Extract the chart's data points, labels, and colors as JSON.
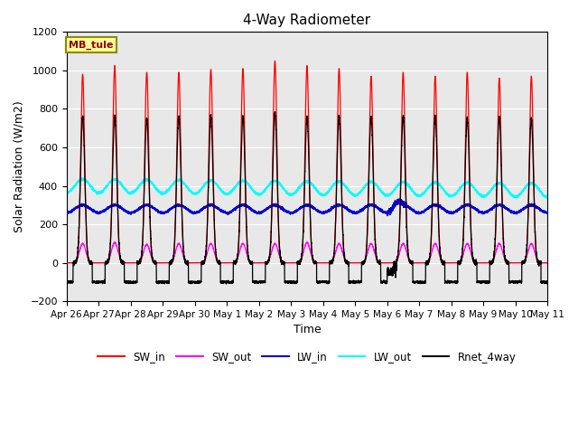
{
  "title": "4-Way Radiometer",
  "xlabel": "Time",
  "ylabel": "Solar Radiation (W/m2)",
  "ylim": [
    -200,
    1200
  ],
  "yticks": [
    -200,
    0,
    200,
    400,
    600,
    800,
    1000,
    1200
  ],
  "annotation": "MB_tule",
  "legend_entries": [
    "SW_in",
    "SW_out",
    "LW_in",
    "LW_out",
    "Rnet_4way"
  ],
  "legend_colors": [
    "#ff0000",
    "#ff00ff",
    "#0000cc",
    "#00ffff",
    "#000000"
  ],
  "plot_bg_color": "#e8e8e8",
  "n_days": 15,
  "tick_labels": [
    "Apr 26",
    "Apr 27",
    "Apr 28",
    "Apr 29",
    "Apr 30",
    "May 1",
    "May 2",
    "May 3",
    "May 4",
    "May 5",
    "May 6",
    "May 7",
    "May 8",
    "May 9",
    "May 10",
    "May 11"
  ],
  "sw_in_peaks": [
    980,
    1025,
    990,
    990,
    1005,
    1010,
    1050,
    1025,
    1010,
    970,
    990,
    970,
    990,
    960,
    970
  ],
  "rnet_peaks": [
    760,
    760,
    750,
    760,
    760,
    760,
    780,
    760,
    760,
    760,
    760,
    760,
    750,
    760,
    750
  ],
  "sw_out_peaks": [
    100,
    105,
    95,
    100,
    100,
    100,
    100,
    105,
    100,
    100,
    100,
    100,
    100,
    100,
    100
  ],
  "lw_in_base": 280,
  "lw_in_amplitude": 20,
  "lw_out_base": 400,
  "lw_out_amplitude": 35,
  "rnet_night": -100
}
